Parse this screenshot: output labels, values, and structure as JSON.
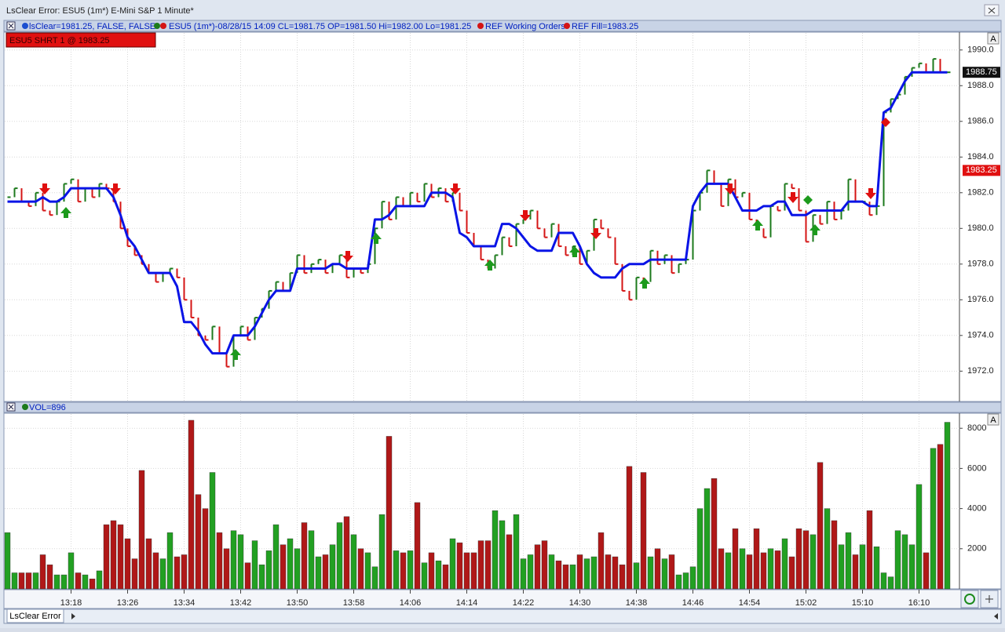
{
  "window": {
    "title": "LsClear Error: ESU5 (1m*) E-Mini S&P 1 Minute*",
    "tab": "LsClear Error"
  },
  "info_bar": [
    "lsClear=1981.25, FALSE, FALSE",
    "ESU5 (1m*)-08/28/15 14:09 CL=1981.75 OP=1981.50 Hi=1982.00 Lo=1981.25",
    "REF Working Orders",
    "REF Fill=1983.25"
  ],
  "order_label": "ESU5 SHRT 1 @ 1983.25",
  "panel_button": "A",
  "volume_header": "VOL=896",
  "chart_data": [
    {
      "type": "price",
      "categories": [
        null,
        null,
        null,
        null,
        null,
        null,
        null,
        null,
        null,
        "13:18",
        null,
        null,
        null,
        null,
        null,
        null,
        null,
        "13:26",
        null,
        null,
        null,
        null,
        null,
        null,
        null,
        "13:34",
        null,
        null,
        null,
        null,
        null,
        null,
        null,
        "13:42",
        null,
        null,
        null,
        null,
        null,
        null,
        null,
        "13:50",
        null,
        null,
        null,
        null,
        null,
        null,
        null,
        "13:58",
        null,
        null,
        null,
        null,
        null,
        null,
        null,
        "14:06",
        null,
        null,
        null,
        null,
        null,
        null,
        null,
        "14:14",
        null,
        null,
        null,
        null,
        null,
        null,
        null,
        "14:22",
        null,
        null,
        null,
        null,
        null,
        null,
        null,
        "14:30",
        null,
        null,
        null,
        null,
        null,
        null,
        null,
        "14:38",
        null,
        null,
        null,
        null,
        null,
        null,
        null,
        "14:46",
        null,
        null,
        null,
        null,
        null,
        null,
        null,
        "14:54",
        null,
        null,
        null,
        null,
        null,
        null,
        null,
        "15:02",
        null,
        null,
        null,
        null,
        null,
        null,
        null,
        "15:10",
        null,
        null,
        null,
        null,
        null,
        null,
        null,
        "16:10",
        null,
        null,
        null,
        null
      ],
      "series": [
        {
          "name": "ESU5",
          "up_color": "#1c7a1c",
          "down_color": "#d41414",
          "values": [
            1981.75,
            1982.25,
            1981.5,
            1981.25,
            1982,
            1981,
            1980.75,
            1981.5,
            1982.5,
            1982.75,
            1981.5,
            1982.25,
            1981.75,
            1982.5,
            1982.25,
            1981.5,
            1980,
            1979,
            1978.5,
            1978,
            1977.5,
            1977,
            1977.5,
            1977.75,
            1977.25,
            1976,
            1975,
            1974,
            1973.75,
            1974.5,
            1973,
            1972.25,
            1974,
            1974.5,
            1973.75,
            1975,
            1975.5,
            1976.5,
            1977,
            1976.5,
            1977.5,
            1978.5,
            1977.5,
            1978,
            1978.25,
            1977.5,
            1978,
            1978.5,
            1977.25,
            1977.75,
            1977.5,
            1978,
            1980,
            1981.5,
            1980.5,
            1981.75,
            1981.25,
            1982,
            1981.5,
            1982.5,
            1981.75,
            1982.25,
            1981.5,
            1982,
            1981,
            1979.75,
            1979,
            1978.25,
            1977.75,
            1978.5,
            1979.5,
            1979,
            1980.25,
            1980.5,
            1981,
            1980,
            1979.5,
            1980.25,
            1979,
            1978.5,
            1979,
            1978,
            1978.75,
            1980.5,
            1980,
            1979.5,
            1978,
            1976.5,
            1976,
            1977.25,
            1977,
            1978.75,
            1978,
            1978.5,
            1977.5,
            1978,
            1978.25,
            1981,
            1982,
            1983.25,
            1982.5,
            1981.25,
            1982.75,
            1981.75,
            1982,
            1980.5,
            1980,
            1979.5,
            1981.25,
            1981,
            1982.5,
            1982.25,
            1981,
            1979.25,
            1980.75,
            1980.25,
            1981.5,
            1980.5,
            1981,
            1982.75,
            1981.5,
            1981.5,
            1980.75,
            1981.25,
            1986.5,
            1987.25,
            1987.5,
            1988.5,
            1989,
            1989.25,
            1988.75,
            1989.5,
            1988.75,
            1988.75
          ]
        },
        {
          "name": "lsClear",
          "color": "#0a14e6",
          "values": [
            1981.5,
            1981.5,
            1981.5,
            1981.5,
            1981.5,
            1981.75,
            1981.5,
            1981.5,
            1981.75,
            1982.25,
            1982.25,
            1982.25,
            1982.25,
            1982.25,
            1982.25,
            1981.75,
            1980.75,
            1979.5,
            1979,
            1978.25,
            1977.5,
            1977.5,
            1977.5,
            1977.5,
            1976.75,
            1974.75,
            1974.75,
            1974.25,
            1973.5,
            1973,
            1973,
            1973,
            1974,
            1974,
            1974,
            1974.5,
            1975.25,
            1976,
            1976.5,
            1976.5,
            1976.5,
            1977.75,
            1977.75,
            1977.75,
            1977.75,
            1977.75,
            1978,
            1978,
            1977.75,
            1977.75,
            1977.75,
            1977.75,
            1980.5,
            1980.5,
            1980.75,
            1981.25,
            1981.25,
            1981.25,
            1981.25,
            1981.25,
            1982,
            1982,
            1982,
            1981.75,
            1979.75,
            1979.5,
            1979,
            1979,
            1979,
            1979,
            1980.25,
            1980.25,
            1980,
            1979.5,
            1979,
            1978.75,
            1978.75,
            1978.75,
            1979.75,
            1979.75,
            1979.75,
            1979,
            1978,
            1977.5,
            1977.25,
            1977.25,
            1977.25,
            1977.75,
            1978,
            1978,
            1978,
            1978.25,
            1978.25,
            1978.25,
            1978.25,
            1978.25,
            1978.25,
            1981.25,
            1982,
            1982.5,
            1982.5,
            1982.5,
            1982.5,
            1981.75,
            1981,
            1981,
            1981,
            1981.25,
            1981.25,
            1981.5,
            1981.5,
            1980.75,
            1980.75,
            1980.75,
            1981,
            1981,
            1981,
            1981,
            1981,
            1981.5,
            1981.5,
            1981.5,
            1981.25,
            1981.25,
            1986.5,
            1986.75,
            1987.5,
            1988.25,
            1988.75,
            1988.75,
            1988.75,
            1988.75,
            1988.75,
            1988.75
          ]
        }
      ],
      "last_price_label": "1988.75",
      "order_price_label": "1983.25",
      "ylim": [
        1970.3,
        1991.0
      ],
      "yticks": [
        {
          "value": 1972,
          "label": "1972.0"
        },
        {
          "value": 1974,
          "label": "1974.0"
        },
        {
          "value": 1976,
          "label": "1976.0"
        },
        {
          "value": 1978,
          "label": "1978.0"
        },
        {
          "value": 1980,
          "label": "1980.0"
        },
        {
          "value": 1982,
          "label": "1982.0"
        },
        {
          "value": 1984,
          "label": "1984.0"
        },
        {
          "value": 1986,
          "label": "1986.0"
        },
        {
          "value": 1988,
          "label": "1988.0"
        },
        {
          "value": 1990,
          "label": "1990.0"
        }
      ],
      "grid": true
    },
    {
      "type": "volume",
      "values": [
        2800,
        800,
        800,
        800,
        800,
        1700,
        1200,
        700,
        700,
        1800,
        800,
        700,
        500,
        900,
        3200,
        3400,
        3200,
        2500,
        1500,
        5900,
        2500,
        1800,
        1500,
        2800,
        1600,
        1700,
        8400,
        4700,
        4000,
        5800,
        2800,
        2000,
        2900,
        2700,
        1300,
        2400,
        1200,
        1900,
        3200,
        2200,
        2500,
        2000,
        3300,
        2900,
        1600,
        1700,
        2200,
        3300,
        3600,
        2700,
        2000,
        1800,
        1100,
        3700,
        7600,
        1900,
        1800,
        1900,
        4300,
        1300,
        1800,
        1400,
        1200,
        2500,
        2300,
        1800,
        1800,
        2400,
        2400,
        3900,
        3400,
        2700,
        3700,
        1500,
        1700,
        2200,
        2400,
        1700,
        1400,
        1200,
        1200,
        1700,
        1500,
        1600,
        2800,
        1700,
        1600,
        1200,
        6100,
        1300,
        5800,
        1600,
        2000,
        1500,
        1700,
        700,
        800,
        1100,
        4000,
        5000,
        5500,
        2000,
        1800,
        3000,
        2000,
        1700,
        3000,
        1800,
        2000,
        1900,
        2500,
        1600,
        3000,
        2900,
        2700,
        6300,
        4000,
        3400,
        2200,
        2800,
        1700,
        2200,
        3900,
        2100,
        800,
        600,
        2900,
        2700,
        2200,
        5200,
        1800,
        7000,
        7200,
        8300
      ],
      "ylim": [
        0,
        8750
      ],
      "yticks": [
        2000,
        4000,
        6000,
        8000
      ],
      "grid": true
    }
  ]
}
